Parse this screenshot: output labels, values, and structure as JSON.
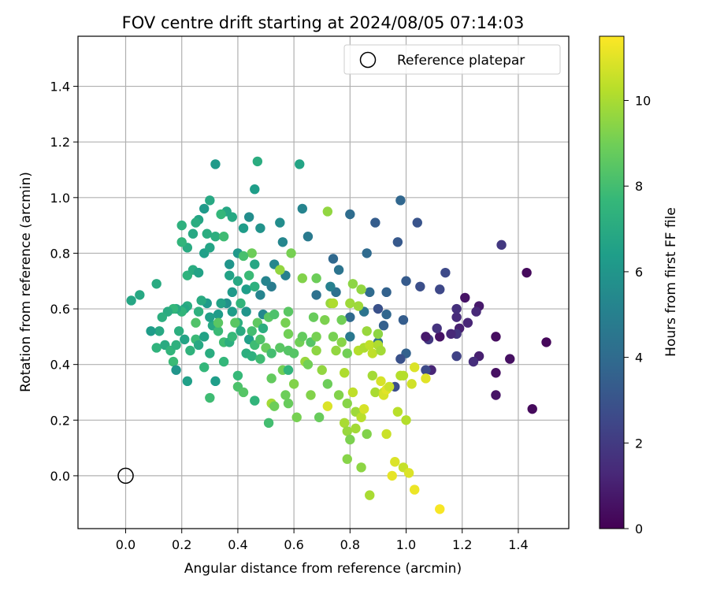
{
  "chart_data": {
    "type": "scatter",
    "title": "FOV centre drift starting at 2024/08/05 07:14:03",
    "xlabel": "Angular distance from reference (arcmin)",
    "ylabel": "Rotation from reference (arcmin)",
    "xlim": [
      -0.17,
      1.58
    ],
    "ylim": [
      -0.19,
      1.58
    ],
    "xticks": [
      "0.0",
      "0.2",
      "0.4",
      "0.6",
      "0.8",
      "1.0",
      "1.2",
      "1.4"
    ],
    "yticks": [
      "0.0",
      "0.2",
      "0.4",
      "0.6",
      "0.8",
      "1.0",
      "1.2",
      "1.4"
    ],
    "grid": true,
    "legend": {
      "position": "top-right",
      "entries": [
        "Reference platepar"
      ]
    },
    "reference_point": {
      "x": 0.0,
      "y": 0.0
    },
    "colorbar": {
      "label": "Hours from first FF file",
      "colormap": "viridis",
      "range": [
        0,
        11.5
      ],
      "ticks": [
        "0",
        "2",
        "4",
        "6",
        "8",
        "10"
      ]
    },
    "colormap_stops": [
      "#440154",
      "#482878",
      "#3e4989",
      "#31688e",
      "#26828e",
      "#1f9e89",
      "#35b779",
      "#6ece58",
      "#b5de2b",
      "#fde725"
    ],
    "points": [
      [
        1.5,
        0.48,
        0.2
      ],
      [
        1.45,
        0.24,
        0.3
      ],
      [
        1.43,
        0.73,
        0.3
      ],
      [
        1.37,
        0.42,
        0.5
      ],
      [
        1.32,
        0.5,
        0.4
      ],
      [
        1.32,
        0.37,
        0.5
      ],
      [
        1.32,
        0.29,
        0.6
      ],
      [
        1.34,
        0.83,
        1.9
      ],
      [
        1.26,
        0.61,
        0.8
      ],
      [
        1.26,
        0.43,
        1.0
      ],
      [
        1.25,
        0.59,
        1.3
      ],
      [
        1.24,
        0.41,
        1.5
      ],
      [
        1.22,
        0.55,
        1.2
      ],
      [
        1.21,
        0.64,
        0.6
      ],
      [
        1.19,
        0.53,
        1.0
      ],
      [
        1.18,
        0.57,
        1.4
      ],
      [
        1.18,
        0.6,
        1.6
      ],
      [
        1.18,
        0.51,
        1.8
      ],
      [
        1.18,
        0.43,
        2.3
      ],
      [
        1.16,
        0.51,
        1.3
      ],
      [
        1.14,
        0.73,
        2.6
      ],
      [
        1.12,
        0.5,
        0.6
      ],
      [
        1.11,
        0.53,
        1.7
      ],
      [
        1.12,
        0.67,
        2.5
      ],
      [
        1.09,
        0.38,
        1.2
      ],
      [
        1.08,
        0.49,
        1.9
      ],
      [
        1.07,
        0.5,
        0.8
      ],
      [
        1.07,
        0.38,
        2.6
      ],
      [
        1.05,
        0.68,
        2.8
      ],
      [
        1.04,
        0.91,
        3.0
      ],
      [
        1.0,
        0.7,
        3.3
      ],
      [
        0.99,
        0.56,
        3.4
      ],
      [
        1.0,
        0.44,
        3.6
      ],
      [
        0.98,
        0.42,
        2.9
      ],
      [
        0.97,
        0.84,
        3.2
      ],
      [
        0.98,
        0.99,
        3.8
      ],
      [
        0.96,
        0.32,
        2.8
      ],
      [
        0.93,
        0.66,
        3.6
      ],
      [
        0.93,
        0.58,
        3.8
      ],
      [
        0.92,
        0.54,
        3.5
      ],
      [
        0.9,
        0.6,
        2.9
      ],
      [
        0.89,
        0.91,
        3.4
      ],
      [
        0.9,
        0.48,
        4.2
      ],
      [
        0.87,
        0.66,
        4.0
      ],
      [
        0.86,
        0.8,
        4.0
      ],
      [
        0.85,
        0.59,
        4.4
      ],
      [
        0.8,
        0.94,
        4.1
      ],
      [
        0.8,
        0.5,
        4.6
      ],
      [
        0.8,
        0.57,
        3.9
      ],
      [
        0.76,
        0.74,
        4.4
      ],
      [
        0.74,
        0.78,
        3.9
      ],
      [
        0.75,
        0.66,
        4.3
      ],
      [
        0.73,
        0.68,
        5.0
      ],
      [
        0.68,
        0.65,
        4.3
      ],
      [
        0.65,
        0.86,
        4.7
      ],
      [
        0.63,
        0.96,
        5.2
      ],
      [
        0.62,
        1.12,
        6.7
      ],
      [
        0.57,
        0.72,
        5.0
      ],
      [
        0.56,
        0.84,
        5.3
      ],
      [
        0.55,
        0.91,
        5.6
      ],
      [
        0.53,
        0.76,
        5.3
      ],
      [
        0.52,
        0.68,
        4.8
      ],
      [
        0.5,
        0.7,
        5.2
      ],
      [
        0.48,
        0.65,
        5.2
      ],
      [
        0.49,
        0.58,
        5.4
      ],
      [
        0.48,
        0.89,
        5.9
      ],
      [
        0.46,
        1.03,
        6.4
      ],
      [
        0.47,
        1.13,
        7.1
      ],
      [
        0.44,
        0.93,
        5.6
      ],
      [
        0.42,
        0.89,
        6.3
      ],
      [
        0.4,
        0.8,
        6.1
      ],
      [
        0.38,
        0.93,
        6.9
      ],
      [
        0.36,
        0.95,
        6.8
      ],
      [
        0.34,
        0.94,
        7.6
      ],
      [
        0.32,
        1.12,
        6.2
      ],
      [
        0.3,
        0.99,
        6.9
      ],
      [
        0.28,
        0.96,
        6.2
      ],
      [
        0.26,
        0.92,
        6.7
      ],
      [
        0.25,
        0.91,
        7.1
      ],
      [
        0.24,
        0.87,
        6.9
      ],
      [
        0.22,
        0.82,
        7.0
      ],
      [
        0.2,
        0.9,
        7.3
      ],
      [
        0.2,
        0.84,
        7.5
      ],
      [
        0.22,
        0.72,
        7.4
      ],
      [
        0.24,
        0.74,
        7.1
      ],
      [
        0.26,
        0.73,
        6.6
      ],
      [
        0.28,
        0.8,
        6.5
      ],
      [
        0.3,
        0.82,
        6.7
      ],
      [
        0.29,
        0.87,
        7.1
      ],
      [
        0.32,
        0.86,
        7.2
      ],
      [
        0.35,
        0.86,
        7.9
      ],
      [
        0.37,
        0.76,
        6.0
      ],
      [
        0.37,
        0.72,
        6.6
      ],
      [
        0.38,
        0.66,
        6.2
      ],
      [
        0.4,
        0.7,
        6.9
      ],
      [
        0.41,
        0.62,
        7.5
      ],
      [
        0.43,
        0.67,
        6.4
      ],
      [
        0.44,
        0.72,
        7.8
      ],
      [
        0.46,
        0.68,
        7.3
      ],
      [
        0.46,
        0.76,
        6.8
      ],
      [
        0.45,
        0.8,
        8.9
      ],
      [
        0.42,
        0.79,
        8.1
      ],
      [
        0.43,
        0.59,
        6.0
      ],
      [
        0.4,
        0.55,
        7.2
      ],
      [
        0.38,
        0.59,
        6.3
      ],
      [
        0.36,
        0.62,
        5.8
      ],
      [
        0.34,
        0.62,
        6.6
      ],
      [
        0.33,
        0.58,
        6.3
      ],
      [
        0.31,
        0.54,
        6.9
      ],
      [
        0.3,
        0.57,
        6.5
      ],
      [
        0.29,
        0.62,
        6.2
      ],
      [
        0.27,
        0.63,
        7.0
      ],
      [
        0.26,
        0.59,
        7.3
      ],
      [
        0.25,
        0.55,
        8.3
      ],
      [
        0.22,
        0.61,
        7.1
      ],
      [
        0.21,
        0.6,
        6.8
      ],
      [
        0.2,
        0.59,
        7.5
      ],
      [
        0.18,
        0.6,
        6.9
      ],
      [
        0.17,
        0.6,
        7.6
      ],
      [
        0.15,
        0.59,
        7.0
      ],
      [
        0.13,
        0.57,
        7.2
      ],
      [
        0.12,
        0.52,
        6.9
      ],
      [
        0.09,
        0.52,
        6.3
      ],
      [
        0.11,
        0.69,
        7.0
      ],
      [
        0.05,
        0.65,
        6.9
      ],
      [
        0.02,
        0.63,
        6.8
      ],
      [
        0.11,
        0.46,
        7.4
      ],
      [
        0.14,
        0.47,
        7.0
      ],
      [
        0.16,
        0.45,
        7.5
      ],
      [
        0.17,
        0.41,
        7.8
      ],
      [
        0.18,
        0.38,
        6.0
      ],
      [
        0.18,
        0.47,
        7.3
      ],
      [
        0.19,
        0.52,
        7.2
      ],
      [
        0.21,
        0.49,
        6.7
      ],
      [
        0.22,
        0.34,
        6.5
      ],
      [
        0.23,
        0.45,
        7.4
      ],
      [
        0.25,
        0.49,
        7.8
      ],
      [
        0.26,
        0.47,
        6.9
      ],
      [
        0.28,
        0.5,
        6.6
      ],
      [
        0.28,
        0.39,
        7.6
      ],
      [
        0.3,
        0.44,
        7.1
      ],
      [
        0.3,
        0.28,
        7.9
      ],
      [
        0.32,
        0.34,
        6.4
      ],
      [
        0.33,
        0.52,
        7.8
      ],
      [
        0.33,
        0.55,
        8.5
      ],
      [
        0.35,
        0.48,
        7.9
      ],
      [
        0.35,
        0.41,
        7.6
      ],
      [
        0.37,
        0.48,
        7.2
      ],
      [
        0.38,
        0.5,
        7.7
      ],
      [
        0.39,
        0.55,
        8.5
      ],
      [
        0.4,
        0.32,
        8.2
      ],
      [
        0.4,
        0.36,
        7.7
      ],
      [
        0.41,
        0.52,
        7.0
      ],
      [
        0.42,
        0.3,
        8.4
      ],
      [
        0.43,
        0.44,
        7.2
      ],
      [
        0.44,
        0.49,
        6.5
      ],
      [
        0.45,
        0.43,
        7.3
      ],
      [
        0.45,
        0.52,
        8.0
      ],
      [
        0.46,
        0.47,
        7.9
      ],
      [
        0.46,
        0.27,
        7.5
      ],
      [
        0.47,
        0.55,
        8.6
      ],
      [
        0.48,
        0.49,
        8.2
      ],
      [
        0.48,
        0.42,
        7.9
      ],
      [
        0.49,
        0.53,
        7.2
      ],
      [
        0.5,
        0.46,
        8.8
      ],
      [
        0.51,
        0.57,
        8.5
      ],
      [
        0.52,
        0.44,
        8.0
      ],
      [
        0.52,
        0.35,
        8.7
      ],
      [
        0.51,
        0.19,
        8.0
      ],
      [
        0.52,
        0.26,
        9.9
      ],
      [
        0.53,
        0.25,
        8.9
      ],
      [
        0.53,
        0.58,
        8.2
      ],
      [
        0.55,
        0.74,
        9.6
      ],
      [
        0.55,
        0.46,
        8.5
      ],
      [
        0.56,
        0.38,
        9.0
      ],
      [
        0.57,
        0.29,
        8.9
      ],
      [
        0.58,
        0.26,
        8.8
      ],
      [
        0.58,
        0.38,
        7.5
      ],
      [
        0.57,
        0.55,
        9.1
      ],
      [
        0.58,
        0.59,
        8.5
      ],
      [
        0.58,
        0.51,
        9.0
      ],
      [
        0.58,
        0.45,
        8.4
      ],
      [
        0.59,
        0.8,
        9.1
      ],
      [
        0.6,
        0.44,
        8.4
      ],
      [
        0.6,
        0.33,
        9.3
      ],
      [
        0.61,
        0.21,
        9.1
      ],
      [
        0.62,
        0.48,
        9.0
      ],
      [
        0.63,
        0.71,
        9.3
      ],
      [
        0.63,
        0.5,
        8.7
      ],
      [
        0.64,
        0.41,
        9.7
      ],
      [
        0.65,
        0.4,
        9.0
      ],
      [
        0.66,
        0.29,
        9.3
      ],
      [
        0.66,
        0.48,
        8.4
      ],
      [
        0.67,
        0.57,
        8.8
      ],
      [
        0.68,
        0.5,
        9.1
      ],
      [
        0.68,
        0.45,
        9.5
      ],
      [
        0.68,
        0.71,
        8.9
      ],
      [
        0.69,
        0.21,
        8.8
      ],
      [
        0.7,
        0.38,
        9.6
      ],
      [
        0.71,
        0.56,
        9.2
      ],
      [
        0.72,
        0.33,
        8.9
      ],
      [
        0.72,
        0.25,
        10.9
      ],
      [
        0.72,
        0.95,
        9.6
      ],
      [
        0.73,
        0.62,
        9.7
      ],
      [
        0.74,
        0.62,
        10.1
      ],
      [
        0.74,
        0.5,
        9.1
      ],
      [
        0.75,
        0.45,
        9.6
      ],
      [
        0.76,
        0.29,
        9.3
      ],
      [
        0.77,
        0.56,
        9.0
      ],
      [
        0.77,
        0.48,
        9.4
      ],
      [
        0.78,
        0.37,
        10.1
      ],
      [
        0.78,
        0.19,
        10.0
      ],
      [
        0.79,
        0.26,
        9.4
      ],
      [
        0.79,
        0.44,
        9.0
      ],
      [
        0.79,
        0.16,
        9.7
      ],
      [
        0.79,
        0.06,
        9.4
      ],
      [
        0.8,
        0.62,
        9.8
      ],
      [
        0.8,
        0.13,
        9.2
      ],
      [
        0.81,
        0.3,
        10.4
      ],
      [
        0.81,
        0.69,
        9.5
      ],
      [
        0.82,
        0.23,
        9.8
      ],
      [
        0.82,
        0.17,
        9.9
      ],
      [
        0.83,
        0.45,
        10.2
      ],
      [
        0.83,
        0.61,
        9.8
      ],
      [
        0.84,
        0.03,
        9.5
      ],
      [
        0.84,
        0.67,
        9.6
      ],
      [
        0.84,
        0.21,
        10.3
      ],
      [
        0.85,
        0.24,
        10.8
      ],
      [
        0.85,
        0.46,
        10.1
      ],
      [
        0.86,
        0.52,
        9.7
      ],
      [
        0.86,
        0.15,
        9.3
      ],
      [
        0.87,
        -0.07,
        10.0
      ],
      [
        0.87,
        0.47,
        10.4
      ],
      [
        0.88,
        0.36,
        9.9
      ],
      [
        0.88,
        0.44,
        10.4
      ],
      [
        0.89,
        0.3,
        10.0
      ],
      [
        0.9,
        0.51,
        9.5
      ],
      [
        0.9,
        0.47,
        10.1
      ],
      [
        0.91,
        0.34,
        10.8
      ],
      [
        0.91,
        0.45,
        9.9
      ],
      [
        0.92,
        0.3,
        10.6
      ],
      [
        0.92,
        0.29,
        10.8
      ],
      [
        0.93,
        0.31,
        11.0
      ],
      [
        0.93,
        0.15,
        10.6
      ],
      [
        0.94,
        0.32,
        10.6
      ],
      [
        0.95,
        0.0,
        11.1
      ],
      [
        0.96,
        0.05,
        10.9
      ],
      [
        0.97,
        0.23,
        10.3
      ],
      [
        0.98,
        0.36,
        10.2
      ],
      [
        0.99,
        0.03,
        10.5
      ],
      [
        1.0,
        0.2,
        10.2
      ],
      [
        1.01,
        0.01,
        10.9
      ],
      [
        1.02,
        0.33,
        10.7
      ],
      [
        1.03,
        0.39,
        10.9
      ],
      [
        1.03,
        -0.05,
        11.2
      ],
      [
        1.07,
        0.35,
        11.0
      ],
      [
        1.12,
        -0.12,
        11.4
      ],
      [
        0.99,
        0.36,
        10.2
      ]
    ]
  }
}
